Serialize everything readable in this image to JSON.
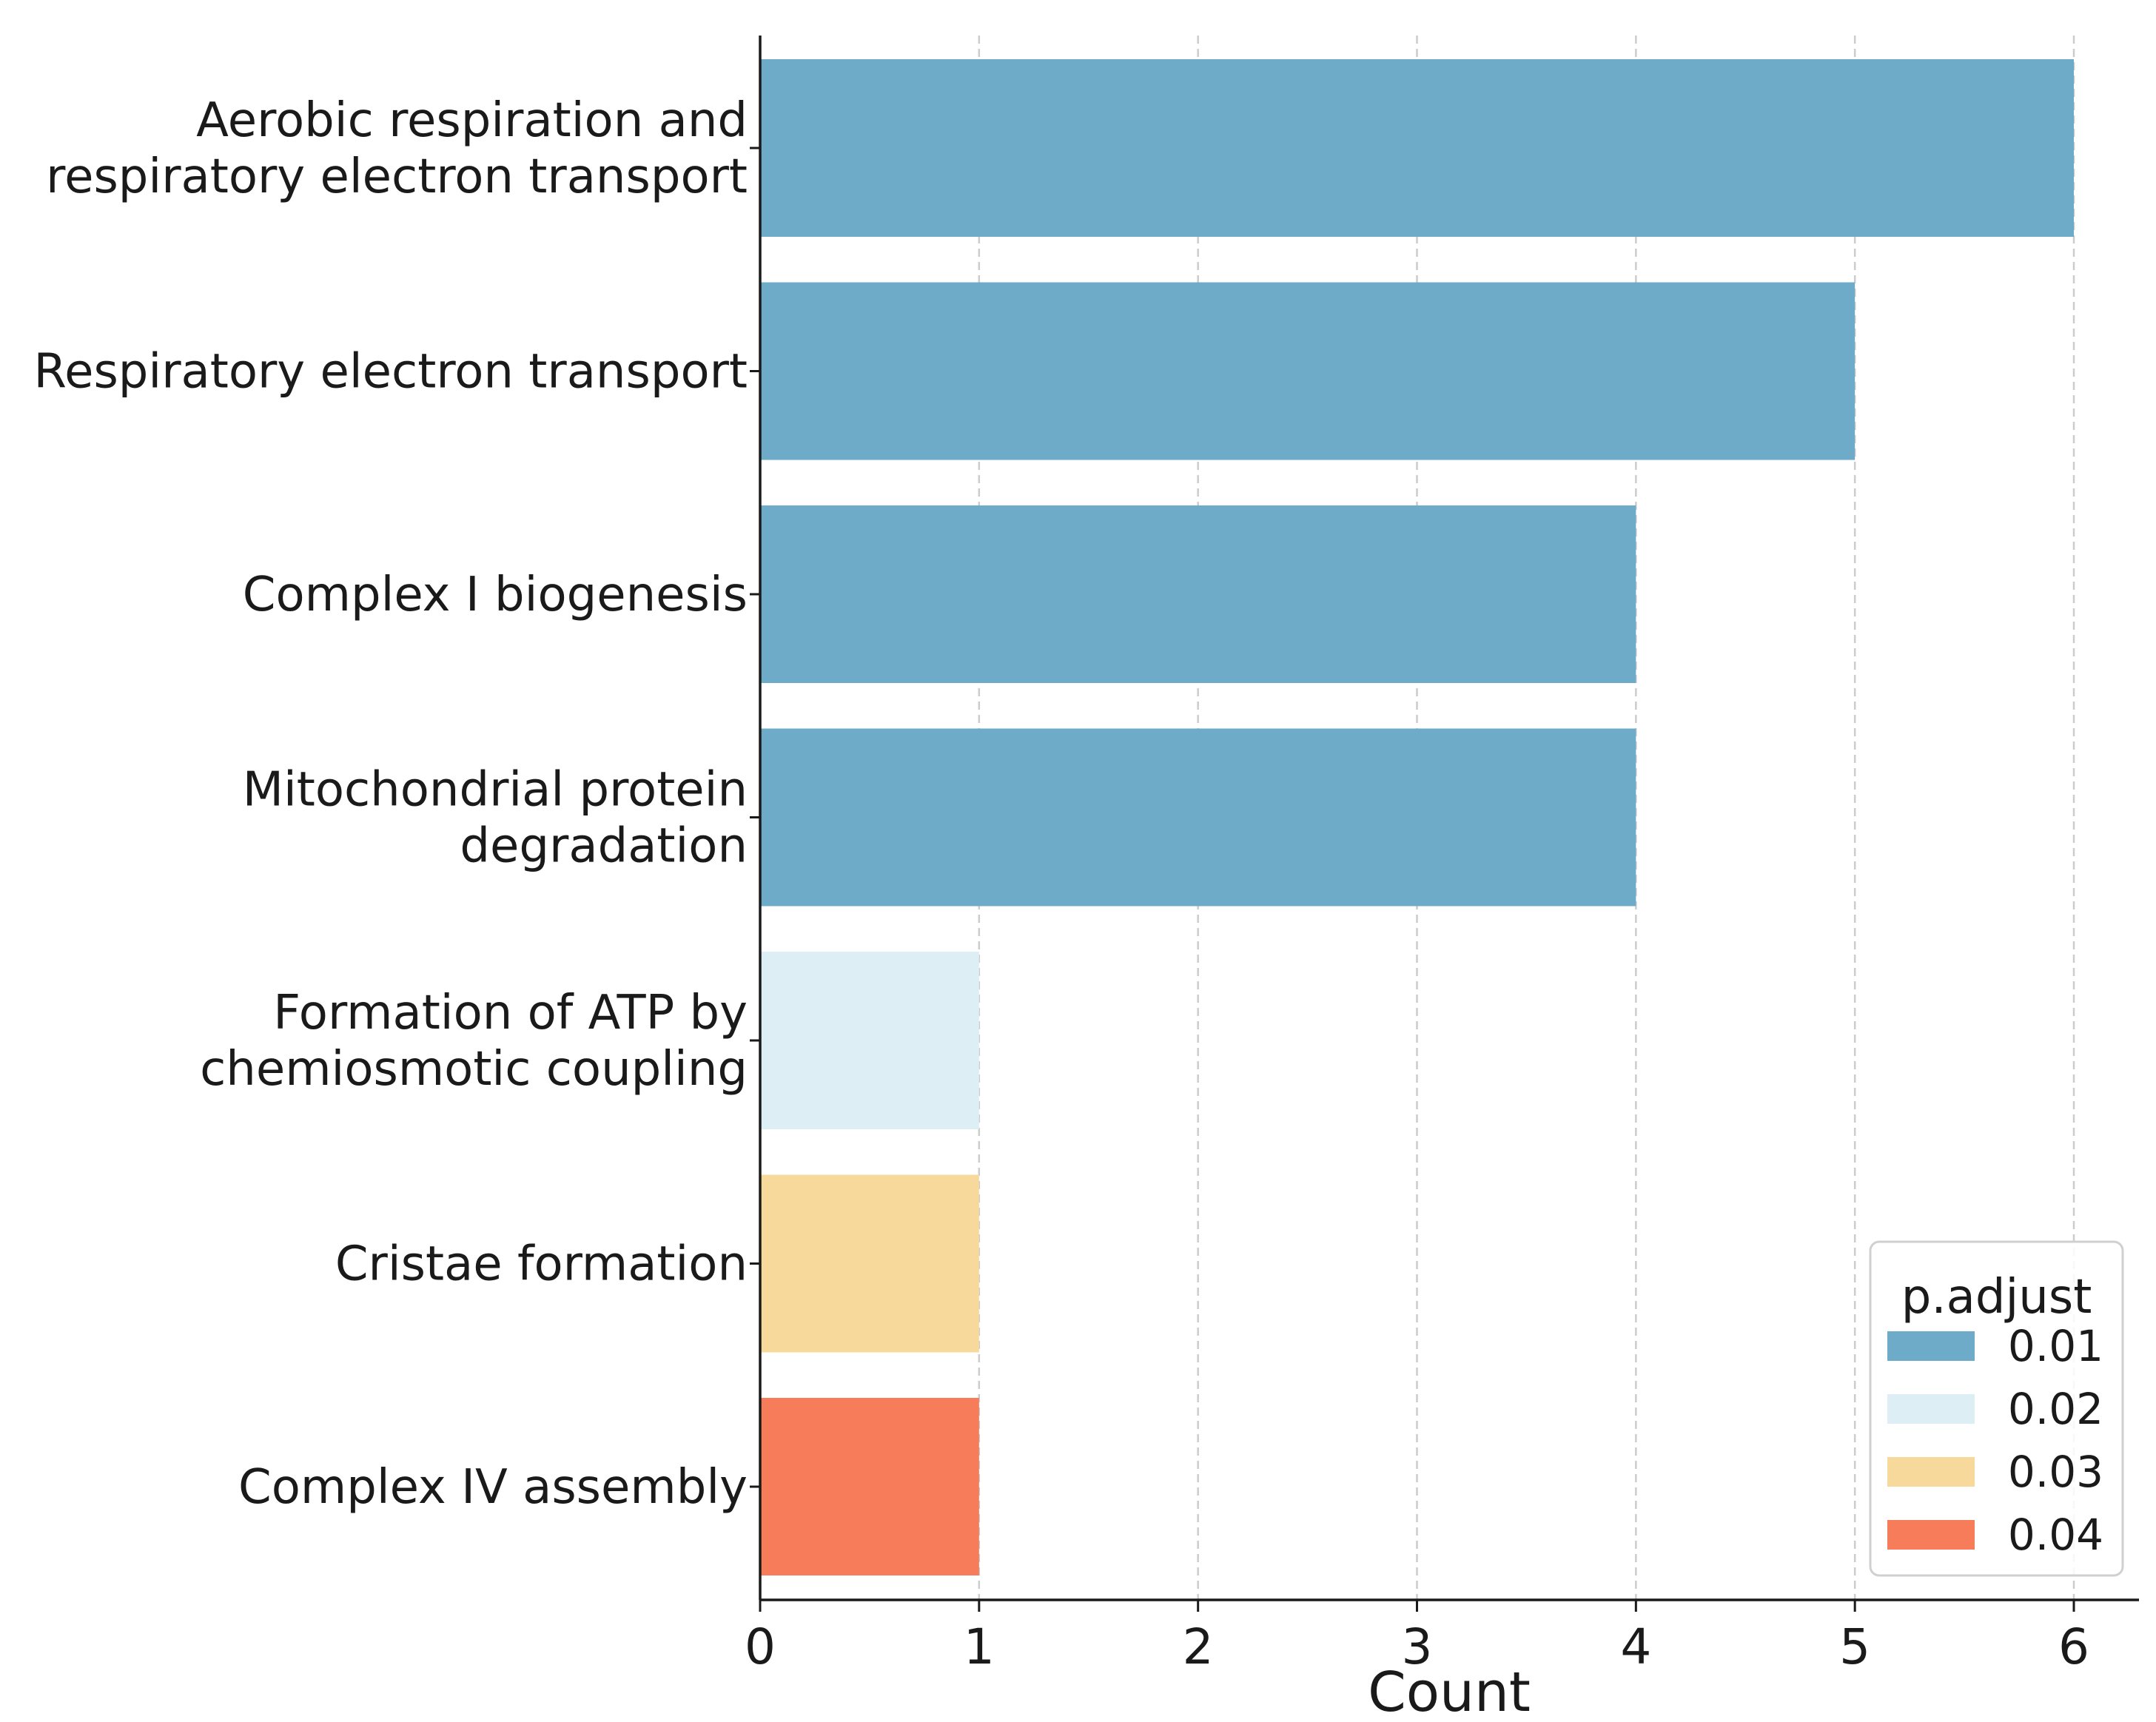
{
  "chart_data": {
    "type": "bar",
    "orientation": "horizontal",
    "title": "",
    "xlabel": "Count",
    "ylabel": "",
    "xlim": [
      0,
      6.3
    ],
    "xticks": [
      0,
      1,
      2,
      3,
      4,
      5,
      6
    ],
    "grid": "vertical dashed",
    "categories": [
      {
        "lines": [
          "Aerobic respiration and",
          "respiratory electron transport"
        ],
        "value": 6,
        "p_adjust": "0.01"
      },
      {
        "lines": [
          "Respiratory electron transport"
        ],
        "value": 5,
        "p_adjust": "0.01"
      },
      {
        "lines": [
          "Complex I biogenesis"
        ],
        "value": 4,
        "p_adjust": "0.01"
      },
      {
        "lines": [
          "Mitochondrial protein",
          "degradation"
        ],
        "value": 4,
        "p_adjust": "0.01"
      },
      {
        "lines": [
          "Formation of ATP by",
          "chemiosmotic coupling"
        ],
        "value": 1,
        "p_adjust": "0.02"
      },
      {
        "lines": [
          "Cristae formation"
        ],
        "value": 1,
        "p_adjust": "0.03"
      },
      {
        "lines": [
          "Complex IV assembly"
        ],
        "value": 1,
        "p_adjust": "0.04"
      }
    ],
    "legend": {
      "title": "p.adjust",
      "position": "bottom-right",
      "entries": [
        {
          "label": "0.01",
          "color": "#6dabc8"
        },
        {
          "label": "0.02",
          "color": "#ddeff4"
        },
        {
          "label": "0.03",
          "color": "#f8d99c"
        },
        {
          "label": "0.04",
          "color": "#f77c5a"
        }
      ]
    }
  }
}
